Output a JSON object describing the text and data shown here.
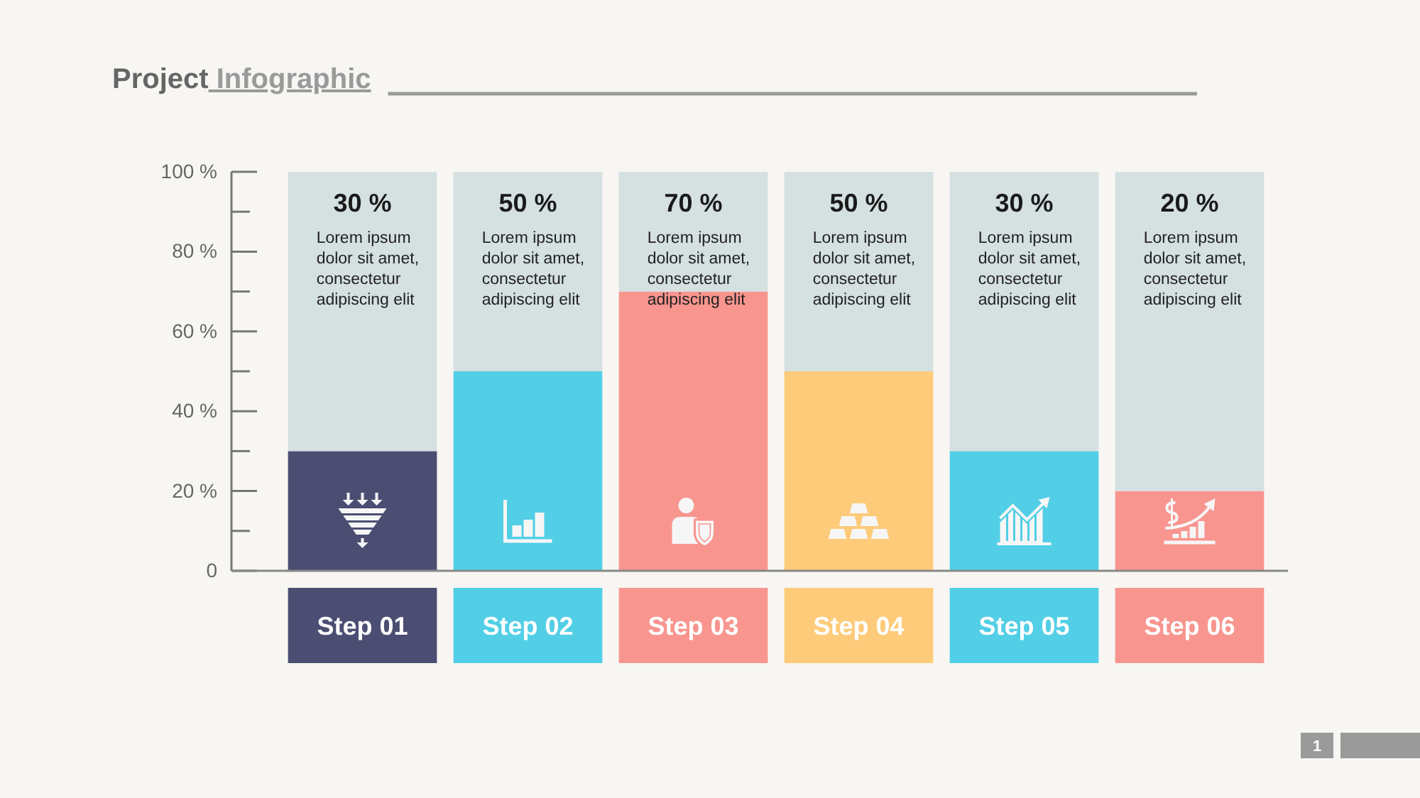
{
  "chart_data": {
    "type": "bar",
    "title": "Project Infographic",
    "categories": [
      "Step 01",
      "Step 02",
      "Step 03",
      "Step 04",
      "Step 05",
      "Step 06"
    ],
    "stacked": true,
    "series": [
      {
        "colors": [
          "#4b4e72",
          "#52cfe6",
          "#f8958f",
          "#fecb7a",
          "#52cfe6",
          "#f8958f"
        ],
        "values": [
          30,
          50,
          70,
          50,
          30,
          20
        ]
      },
      {
        "color": "#d5e0e1",
        "values": [
          70,
          50,
          30,
          50,
          70,
          80
        ]
      }
    ],
    "ylim": [
      0,
      100
    ],
    "yticks": [
      0,
      {
        "value": 10,
        "label": null
      },
      {
        "value": 20,
        "label": "20 %"
      },
      {
        "value": 30,
        "label": null
      },
      {
        "value": 40,
        "label": "40 %"
      },
      {
        "value": 50,
        "label": null
      },
      {
        "value": 60,
        "label": "60 %"
      },
      {
        "value": 70,
        "label": null
      },
      {
        "value": 80,
        "label": "80 %"
      },
      {
        "value": 90,
        "label": null
      },
      {
        "value": 100,
        "label": "100 %"
      }
    ],
    "annotations": [
      {
        "text": "30 %",
        "x": "Step 01",
        "y": 100
      },
      {
        "text": "50 %",
        "x": "Step 02",
        "y": 100
      },
      {
        "text": "70 %",
        "x": "Step 03",
        "y": 100
      },
      {
        "text": "50 %",
        "x": "Step 04",
        "y": 100
      },
      {
        "text": "30 %",
        "x": "Step 05",
        "y": 100
      },
      {
        "text": "20 %",
        "x": "Step 06",
        "y": 100
      },
      "Lorem ipsum dolor sit amet, consectetur adipiscing elit",
      "Lorem ipsum dolor sit amet, consectetur adipiscing elit",
      "Lorem ipsum dolor sit amet, consectetur adipiscing elit",
      "Lorem ipsum dolor sit amet, consectetur adipiscing elit",
      "Lorem ipsum dolor sit amet, consectetur adipiscing elit",
      "Lorem ipsum dolor sit amet, consectetur adipiscing elit",
      "1"
    ]
  }
}
